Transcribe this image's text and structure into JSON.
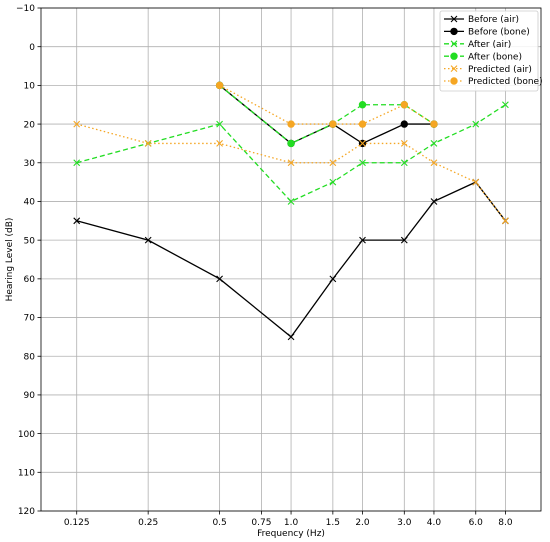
{
  "chart_data": {
    "type": "line",
    "xlabel": "Frequency (Hz)",
    "ylabel": "Hearing Level (dB)",
    "x_ticks": [
      0.125,
      0.25,
      0.5,
      0.75,
      1.0,
      1.5,
      2.0,
      3.0,
      4.0,
      6.0,
      8.0
    ],
    "x_tick_labels": [
      "0.125",
      "0.25",
      "0.5",
      "0.75",
      "1.0",
      "1.5",
      "2.0",
      "3.0",
      "4.0",
      "6.0",
      "8.0"
    ],
    "x_scale": "log2",
    "y_ticks": [
      -10,
      0,
      10,
      20,
      30,
      40,
      50,
      60,
      70,
      80,
      90,
      100,
      110,
      120
    ],
    "y_tick_labels": [
      "−10",
      "0",
      "10",
      "20",
      "30",
      "40",
      "50",
      "60",
      "70",
      "80",
      "90",
      "100",
      "110",
      "120"
    ],
    "ylim": [
      -10,
      120
    ],
    "y_inverted": true,
    "grid": true,
    "legend_position": "top-right",
    "series": [
      {
        "name": "Before (air)",
        "color": "#000000",
        "dash": "solid",
        "marker": "x",
        "x": [
          0.125,
          0.25,
          0.5,
          1.0,
          1.5,
          2.0,
          3.0,
          4.0,
          6.0,
          8.0
        ],
        "y": [
          45,
          50,
          60,
          75,
          60,
          50,
          50,
          40,
          35,
          45
        ]
      },
      {
        "name": "Before (bone)",
        "color": "#000000",
        "dash": "solid",
        "marker": "o",
        "x": [
          0.5,
          1.0,
          1.5,
          2.0,
          3.0,
          4.0
        ],
        "y": [
          10,
          25,
          20,
          25,
          20,
          20
        ]
      },
      {
        "name": "After (air)",
        "color": "#22dd22",
        "dash": "dashed",
        "marker": "x",
        "x": [
          0.125,
          0.25,
          0.5,
          1.0,
          1.5,
          2.0,
          3.0,
          4.0,
          6.0,
          8.0
        ],
        "y": [
          30,
          25,
          20,
          40,
          35,
          30,
          30,
          25,
          20,
          15
        ]
      },
      {
        "name": "After (bone)",
        "color": "#22dd22",
        "dash": "dashed",
        "marker": "o",
        "x": [
          0.5,
          1.0,
          1.5,
          2.0,
          3.0,
          4.0
        ],
        "y": [
          10,
          25,
          20,
          15,
          15,
          20
        ]
      },
      {
        "name": "Predicted (air)",
        "color": "#f5a623",
        "dash": "dotted",
        "marker": "x",
        "x": [
          0.125,
          0.25,
          0.5,
          1.0,
          1.5,
          2.0,
          3.0,
          4.0,
          6.0,
          8.0
        ],
        "y": [
          20,
          25,
          25,
          30,
          30,
          25,
          25,
          30,
          35,
          45
        ]
      },
      {
        "name": "Predicted (bone)",
        "color": "#f5a623",
        "dash": "dotted",
        "marker": "o",
        "x": [
          0.5,
          1.0,
          1.5,
          2.0,
          3.0,
          4.0
        ],
        "y": [
          10,
          20,
          20,
          20,
          15,
          20
        ]
      }
    ]
  }
}
